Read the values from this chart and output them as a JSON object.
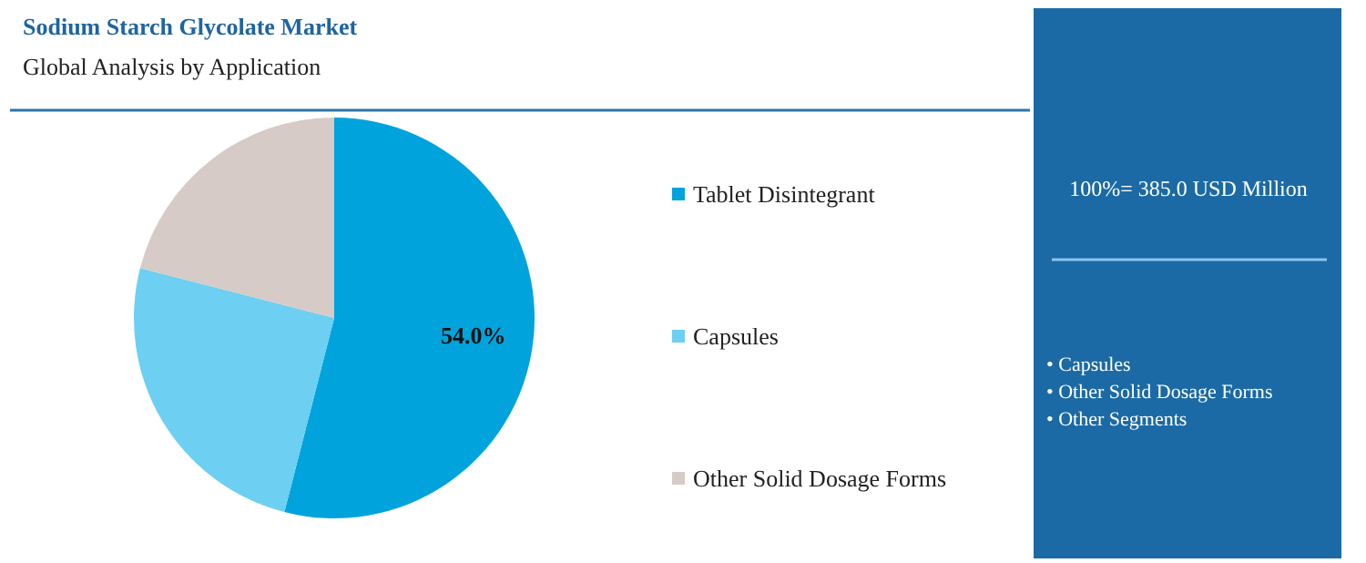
{
  "chart_data": {
    "type": "pie",
    "title": "Sodium Starch Glycolate Market",
    "subtitle": "Global Analysis by Application",
    "categories": [
      "Tablet Disintegrant",
      "Capsules",
      "Other Solid Dosage Forms"
    ],
    "values": [
      54.0,
      25,
      21
    ],
    "colors": [
      "#00a3dc",
      "#6dcff2",
      "#d6cbc6"
    ],
    "value_labels": [
      "54.0%",
      null,
      null
    ],
    "legend": "right",
    "annotations": [
      "100%= 385.0 USD Million",
      "• Capsules",
      "• Other Solid Dosage Forms",
      "• Other Segments"
    ]
  }
}
